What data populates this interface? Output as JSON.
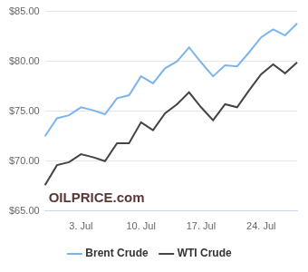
{
  "chart_data": {
    "type": "line",
    "categories": [
      null,
      null,
      null,
      "3. Jul",
      null,
      null,
      null,
      null,
      "10. Jul",
      null,
      null,
      null,
      null,
      "17. Jul",
      null,
      null,
      null,
      null,
      "24. Jul",
      null,
      null,
      null
    ],
    "series": [
      {
        "name": "Brent Crude",
        "color": "#7cb5ec",
        "values": [
          72.5,
          74.3,
          74.6,
          75.4,
          75.1,
          74.7,
          76.3,
          76.6,
          78.5,
          77.8,
          79.3,
          80.0,
          81.4,
          79.9,
          78.5,
          79.6,
          79.5,
          80.9,
          82.4,
          83.2,
          82.6,
          83.8
        ]
      },
      {
        "name": "WTI Crude",
        "color": "#434348",
        "values": [
          67.6,
          69.6,
          69.9,
          70.7,
          70.4,
          70.0,
          71.8,
          71.8,
          73.9,
          73.1,
          74.8,
          75.7,
          76.9,
          75.4,
          74.1,
          75.7,
          75.4,
          77.1,
          78.7,
          79.7,
          78.8,
          79.9
        ]
      }
    ],
    "ylim": [
      65,
      85
    ],
    "yticks": [
      {
        "value": 65,
        "label": "$65.00"
      },
      {
        "value": 70,
        "label": "$70.00"
      },
      {
        "value": 75,
        "label": "$75.00"
      },
      {
        "value": 80,
        "label": "$80.00"
      },
      {
        "value": 85,
        "label": "$85.00"
      }
    ],
    "grid": true,
    "legend": "bottom",
    "annotations": [
      "OILPRICE.com"
    ]
  }
}
